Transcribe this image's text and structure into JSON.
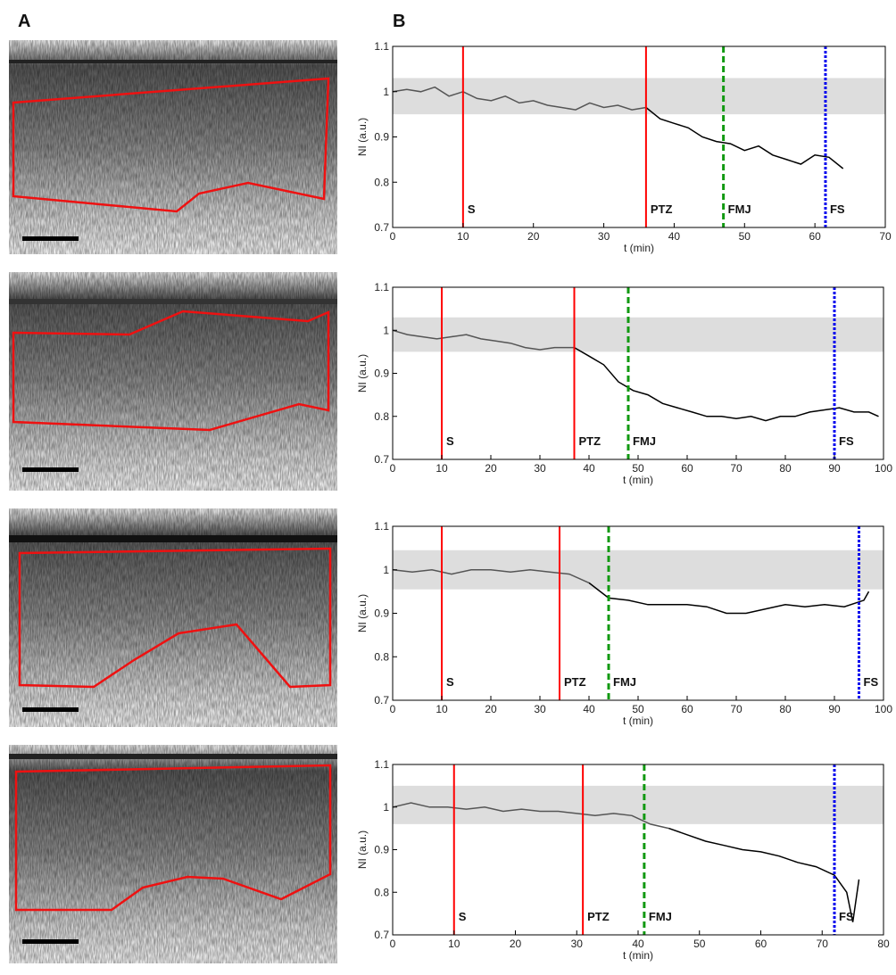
{
  "panel_labels": [
    "A",
    "B"
  ],
  "chart_data": [
    {
      "type": "line",
      "xlabel": "t (min)",
      "ylabel": "NI (a.u.)",
      "xlim": [
        0,
        70
      ],
      "xticks": [
        0,
        10,
        20,
        30,
        40,
        50,
        60,
        70
      ],
      "ylim": [
        0.7,
        1.1
      ],
      "yticks": [
        0.7,
        0.8,
        0.9,
        1,
        1.1
      ],
      "band": [
        0.95,
        1.03
      ],
      "band_color": "#dddddd",
      "events": [
        {
          "label": "S",
          "x": 10,
          "color": "#ff0000",
          "style": "solid"
        },
        {
          "label": "PTZ",
          "x": 36,
          "color": "#ff0000",
          "style": "solid"
        },
        {
          "label": "FMJ",
          "x": 47,
          "color": "#119911",
          "style": "dashed"
        },
        {
          "label": "FS",
          "x": 61.5,
          "color": "#0000ee",
          "style": "dotted"
        }
      ],
      "series": [
        {
          "color": "#555555",
          "x": [
            0,
            2,
            4,
            6,
            8,
            10,
            12,
            14,
            16,
            18,
            20,
            22,
            24,
            26,
            28,
            30,
            32,
            34,
            36
          ],
          "values": [
            1.0,
            1.005,
            1.0,
            1.01,
            0.99,
            1.0,
            0.985,
            0.98,
            0.99,
            0.975,
            0.98,
            0.97,
            0.965,
            0.96,
            0.975,
            0.965,
            0.97,
            0.96,
            0.965
          ]
        },
        {
          "color": "#000000",
          "x": [
            36,
            38,
            40,
            42,
            44,
            46,
            48,
            50,
            52,
            54,
            56,
            58,
            60,
            62,
            64
          ],
          "values": [
            0.965,
            0.94,
            0.93,
            0.92,
            0.9,
            0.89,
            0.885,
            0.87,
            0.88,
            0.86,
            0.85,
            0.84,
            0.86,
            0.855,
            0.83
          ]
        }
      ]
    },
    {
      "type": "line",
      "xlabel": "t (min)",
      "ylabel": "NI (a.u.)",
      "xlim": [
        0,
        100
      ],
      "xticks": [
        0,
        10,
        20,
        30,
        40,
        50,
        60,
        70,
        80,
        90,
        100
      ],
      "ylim": [
        0.7,
        1.1
      ],
      "yticks": [
        0.7,
        0.8,
        0.9,
        1,
        1.1
      ],
      "band": [
        0.95,
        1.03
      ],
      "band_color": "#dddddd",
      "events": [
        {
          "label": "S",
          "x": 10,
          "color": "#ff0000",
          "style": "solid"
        },
        {
          "label": "PTZ",
          "x": 37,
          "color": "#ff0000",
          "style": "solid"
        },
        {
          "label": "FMJ",
          "x": 48,
          "color": "#119911",
          "style": "dashed"
        },
        {
          "label": "FS",
          "x": 90,
          "color": "#0000ee",
          "style": "dotted"
        }
      ],
      "series": [
        {
          "color": "#555555",
          "x": [
            0,
            3,
            6,
            9,
            12,
            15,
            18,
            21,
            24,
            27,
            30,
            33,
            37
          ],
          "values": [
            1.0,
            0.99,
            0.985,
            0.98,
            0.985,
            0.99,
            0.98,
            0.975,
            0.97,
            0.96,
            0.955,
            0.96,
            0.96
          ]
        },
        {
          "color": "#000000",
          "x": [
            37,
            40,
            43,
            46,
            49,
            52,
            55,
            58,
            61,
            64,
            67,
            70,
            73,
            76,
            79,
            82,
            85,
            88,
            91,
            94,
            97,
            99
          ],
          "values": [
            0.96,
            0.94,
            0.92,
            0.88,
            0.86,
            0.85,
            0.83,
            0.82,
            0.81,
            0.8,
            0.8,
            0.795,
            0.8,
            0.79,
            0.8,
            0.8,
            0.81,
            0.815,
            0.82,
            0.81,
            0.81,
            0.8
          ]
        }
      ]
    },
    {
      "type": "line",
      "xlabel": "t (min)",
      "ylabel": "NI (a.u.)",
      "xlim": [
        0,
        100
      ],
      "xticks": [
        0,
        10,
        20,
        30,
        40,
        50,
        60,
        70,
        80,
        90,
        100
      ],
      "ylim": [
        0.7,
        1.1
      ],
      "yticks": [
        0.7,
        0.8,
        0.9,
        1,
        1.1
      ],
      "band": [
        0.955,
        1.045
      ],
      "band_color": "#dddddd",
      "events": [
        {
          "label": "S",
          "x": 10,
          "color": "#ff0000",
          "style": "solid"
        },
        {
          "label": "PTZ",
          "x": 34,
          "color": "#ff0000",
          "style": "solid"
        },
        {
          "label": "FMJ",
          "x": 44,
          "color": "#119911",
          "style": "dashed"
        },
        {
          "label": "FS",
          "x": 95,
          "color": "#0000ee",
          "style": "dotted"
        }
      ],
      "series": [
        {
          "color": "#555555",
          "x": [
            0,
            4,
            8,
            12,
            16,
            20,
            24,
            28,
            32,
            36,
            40
          ],
          "values": [
            1.0,
            0.995,
            1.0,
            0.99,
            1.0,
            1.0,
            0.995,
            1.0,
            0.995,
            0.99,
            0.97
          ]
        },
        {
          "color": "#000000",
          "x": [
            40,
            44,
            48,
            52,
            56,
            60,
            64,
            68,
            72,
            76,
            80,
            84,
            88,
            92,
            96,
            97
          ],
          "values": [
            0.97,
            0.935,
            0.93,
            0.92,
            0.92,
            0.92,
            0.915,
            0.9,
            0.9,
            0.91,
            0.92,
            0.915,
            0.92,
            0.915,
            0.93,
            0.95
          ]
        }
      ]
    },
    {
      "type": "line",
      "xlabel": "t (min)",
      "ylabel": "NI (a.u.)",
      "xlim": [
        0,
        80
      ],
      "xticks": [
        0,
        10,
        20,
        30,
        40,
        50,
        60,
        70,
        80
      ],
      "ylim": [
        0.7,
        1.1
      ],
      "yticks": [
        0.7,
        0.8,
        0.9,
        1,
        1.1
      ],
      "band": [
        0.96,
        1.05
      ],
      "band_color": "#dddddd",
      "events": [
        {
          "label": "S",
          "x": 10,
          "color": "#ff0000",
          "style": "solid"
        },
        {
          "label": "PTZ",
          "x": 31,
          "color": "#ff0000",
          "style": "solid"
        },
        {
          "label": "FMJ",
          "x": 41,
          "color": "#119911",
          "style": "dashed"
        },
        {
          "label": "FS",
          "x": 72,
          "color": "#0000ee",
          "style": "dotted"
        }
      ],
      "series": [
        {
          "color": "#555555",
          "x": [
            0,
            3,
            6,
            9,
            12,
            15,
            18,
            21,
            24,
            27,
            30,
            33,
            36,
            39,
            42,
            45
          ],
          "values": [
            1.0,
            1.01,
            1.0,
            1.0,
            0.995,
            1.0,
            0.99,
            0.995,
            0.99,
            0.99,
            0.985,
            0.98,
            0.985,
            0.98,
            0.96,
            0.95
          ]
        },
        {
          "color": "#000000",
          "x": [
            45,
            48,
            51,
            54,
            57,
            60,
            63,
            66,
            69,
            72,
            74,
            75,
            76
          ],
          "values": [
            0.95,
            0.935,
            0.92,
            0.91,
            0.9,
            0.895,
            0.885,
            0.87,
            0.86,
            0.84,
            0.8,
            0.73,
            0.83
          ]
        }
      ]
    }
  ]
}
